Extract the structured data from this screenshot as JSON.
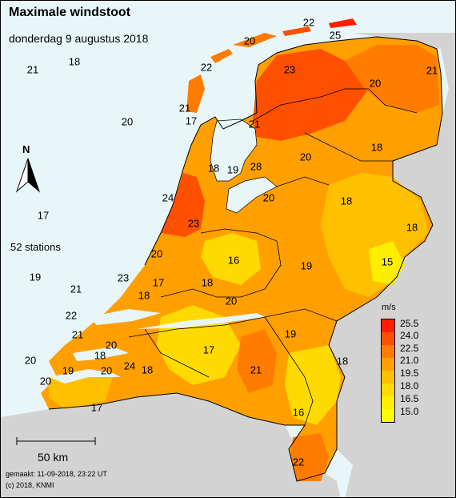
{
  "title": "Maximale windstoot",
  "subtitle": "donderdag 9 augustus 2018",
  "stations_text": "52 stations",
  "scale_label": "50 km",
  "credit_made": "gemaakt: 11-09-2018, 23:22 UT",
  "credit_copy": "(c) 2018, KNMI",
  "north_label": "N",
  "legend": {
    "unit": "m/s",
    "values": [
      "25.5",
      "24.0",
      "22.5",
      "21.0",
      "19.5",
      "18.0",
      "16.5",
      "15.0"
    ],
    "colors": [
      "#ff1f00",
      "#ff5000",
      "#ff7c00",
      "#ffa000",
      "#ffc000",
      "#ffda00",
      "#ffee00",
      "#ffff00"
    ]
  },
  "colors": {
    "sea": "#e8f6f9",
    "land_outside": "#d3d3d3"
  },
  "station_values": [
    "22",
    "25",
    "20",
    "22",
    "23",
    "21",
    "18",
    "21",
    "21",
    "20",
    "17",
    "21",
    "18",
    "19",
    "28",
    "20",
    "24",
    "18",
    "20",
    "17",
    "23",
    "18",
    "20",
    "16",
    "19",
    "15",
    "23",
    "17",
    "18",
    "18",
    "20",
    "21",
    "22",
    "19",
    "21",
    "18",
    "20",
    "24",
    "18",
    "17",
    "21",
    "20",
    "19",
    "18",
    "17",
    "16",
    "22",
    "17",
    "19",
    "21",
    "20",
    "20"
  ]
}
